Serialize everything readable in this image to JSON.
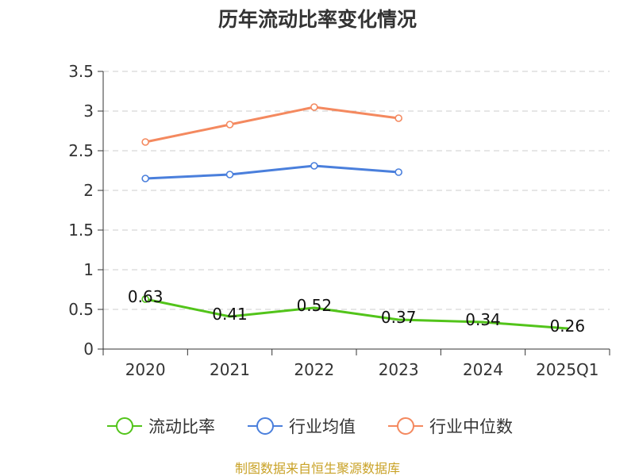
{
  "chart_data": {
    "type": "line",
    "title": "历年流动比率变化情况",
    "categories": [
      "2020",
      "2021",
      "2022",
      "2023",
      "2024",
      "2025Q1"
    ],
    "ylim": [
      0,
      3.5
    ],
    "yticks": [
      "0",
      "0.5",
      "1",
      "1.5",
      "2",
      "2.5",
      "3",
      "3.5"
    ],
    "grid": true,
    "legend_position": "bottom",
    "series": [
      {
        "name": "流动比率",
        "color": "#52c41a",
        "values": [
          0.63,
          0.41,
          0.52,
          0.37,
          0.34,
          0.26
        ],
        "labels": [
          "0.63",
          "0.41",
          "0.52",
          "0.37",
          "0.34",
          "0.26"
        ],
        "show_markers": [
          true,
          false,
          false,
          false,
          false,
          false
        ],
        "show_labels": true
      },
      {
        "name": "行业均值",
        "color": "#4a7fdc",
        "values": [
          2.15,
          2.2,
          2.31,
          2.23,
          null,
          null
        ],
        "show_markers": [
          true,
          true,
          true,
          true,
          false,
          false
        ],
        "show_labels": false
      },
      {
        "name": "行业中位数",
        "color": "#f4895f",
        "values": [
          2.61,
          2.83,
          3.05,
          2.91,
          null,
          null
        ],
        "show_markers": [
          true,
          true,
          true,
          true,
          false,
          false
        ],
        "show_labels": false
      }
    ],
    "source": "制图数据来自恒生聚源数据库"
  }
}
